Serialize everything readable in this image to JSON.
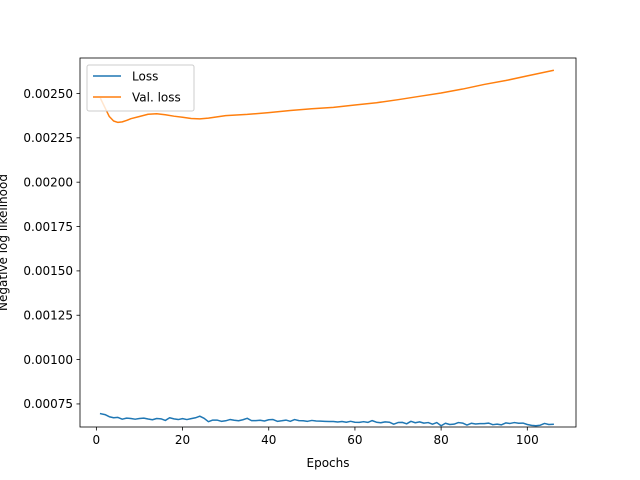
{
  "chart_data": {
    "type": "line",
    "title": "",
    "xlabel": "Epochs",
    "ylabel": "Negative log likelihood",
    "xlim": [
      -3.8,
      111.3
    ],
    "ylim": [
      0.00062,
      0.0027
    ],
    "xticks": [
      0,
      20,
      40,
      60,
      80,
      100
    ],
    "yticks": [
      0.00075,
      0.001,
      0.00125,
      0.0015,
      0.00175,
      0.002,
      0.00225,
      0.0025
    ],
    "ytick_labels": [
      "0.00075",
      "0.00100",
      "0.00125",
      "0.00150",
      "0.00175",
      "0.00200",
      "0.00225",
      "0.00250"
    ],
    "grid": false,
    "legend_position": "top-left",
    "series": [
      {
        "name": "Loss",
        "color": "#1f77b4",
        "x": [
          1,
          2,
          3,
          4,
          5,
          6,
          7,
          8,
          9,
          10,
          11,
          12,
          13,
          14,
          15,
          16,
          17,
          18,
          19,
          20,
          21,
          22,
          23,
          24,
          25,
          26,
          27,
          28,
          29,
          30,
          31,
          32,
          33,
          34,
          35,
          36,
          37,
          38,
          39,
          40,
          41,
          42,
          43,
          44,
          45,
          46,
          47,
          48,
          49,
          50,
          51,
          52,
          53,
          54,
          55,
          56,
          57,
          58,
          59,
          60,
          61,
          62,
          63,
          64,
          65,
          66,
          67,
          68,
          69,
          70,
          71,
          72,
          73,
          74,
          75,
          76,
          77,
          78,
          79,
          80,
          81,
          82,
          83,
          84,
          85,
          86,
          87,
          88,
          89,
          90,
          91,
          92,
          93,
          94,
          95,
          96,
          97,
          98,
          99,
          100,
          101,
          102,
          103,
          104,
          105,
          106
        ],
        "values": [
          0.000695,
          0.00069,
          0.000678,
          0.000672,
          0.000674,
          0.000664,
          0.00067,
          0.000668,
          0.000664,
          0.000668,
          0.00067,
          0.000665,
          0.000661,
          0.000668,
          0.000666,
          0.000657,
          0.000672,
          0.000666,
          0.000662,
          0.000667,
          0.000662,
          0.000667,
          0.000672,
          0.000681,
          0.000669,
          0.00065,
          0.000659,
          0.000659,
          0.000652,
          0.000655,
          0.000662,
          0.000658,
          0.000655,
          0.000661,
          0.000669,
          0.000656,
          0.000656,
          0.000658,
          0.000654,
          0.000661,
          0.000662,
          0.000652,
          0.000655,
          0.000659,
          0.000652,
          0.000662,
          0.000656,
          0.000655,
          0.000652,
          0.000657,
          0.000654,
          0.000653,
          0.000652,
          0.000651,
          0.000651,
          0.000648,
          0.000651,
          0.000647,
          0.000652,
          0.000647,
          0.000646,
          0.00065,
          0.000646,
          0.000656,
          0.000647,
          0.000644,
          0.000649,
          0.000647,
          0.000636,
          0.000645,
          0.000646,
          0.000638,
          0.000652,
          0.000644,
          0.000649,
          0.000642,
          0.000645,
          0.000636,
          0.000645,
          0.000627,
          0.000641,
          0.000634,
          0.000636,
          0.000645,
          0.000642,
          0.000631,
          0.000641,
          0.000637,
          0.000639,
          0.000639,
          0.000642,
          0.000633,
          0.000636,
          0.000632,
          0.000643,
          0.00064,
          0.000645,
          0.000641,
          0.000642,
          0.000634,
          0.000629,
          0.000627,
          0.00063,
          0.00064,
          0.000634,
          0.000635
        ]
      },
      {
        "name": "Val. loss",
        "color": "#ff7f0e",
        "x": [
          1,
          2,
          3,
          4,
          5,
          6,
          7,
          8,
          10,
          12,
          14,
          16,
          18,
          20,
          22,
          24,
          26,
          28,
          30,
          35,
          40,
          45,
          50,
          55,
          60,
          65,
          70,
          75,
          80,
          85,
          90,
          95,
          100,
          106
        ],
        "values": [
          0.00247,
          0.00242,
          0.00237,
          0.002345,
          0.002337,
          0.00234,
          0.002348,
          0.002358,
          0.00237,
          0.002383,
          0.002386,
          0.00238,
          0.002372,
          0.002366,
          0.002359,
          0.002357,
          0.002361,
          0.002368,
          0.002375,
          0.002382,
          0.002392,
          0.002404,
          0.002414,
          0.002422,
          0.002435,
          0.002448,
          0.002465,
          0.002484,
          0.002503,
          0.002525,
          0.002551,
          0.002573,
          0.002599,
          0.00263
        ]
      }
    ]
  }
}
